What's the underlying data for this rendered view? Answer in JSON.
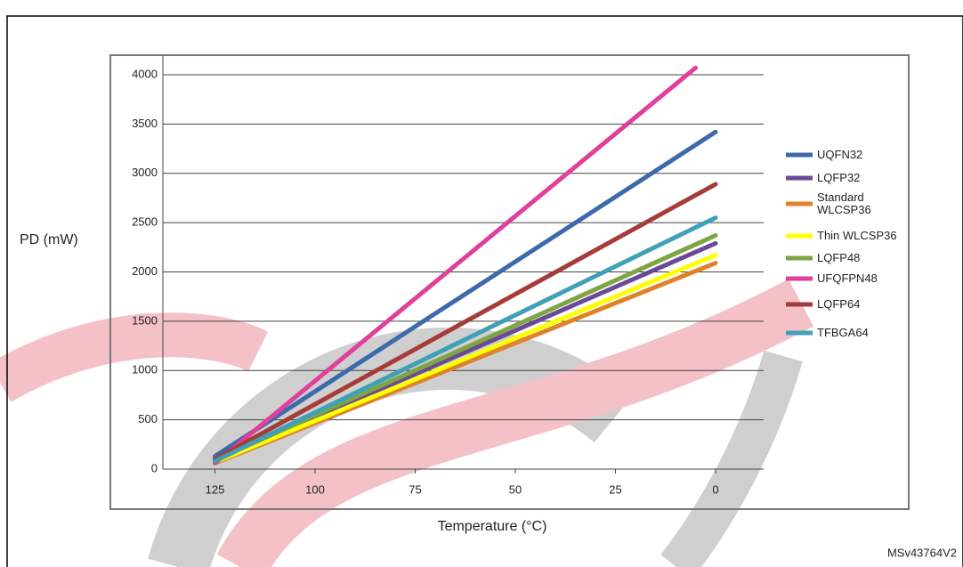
{
  "chart_data": {
    "type": "line",
    "y_label": "PD (mW)",
    "x_label": "Temperature (°C)",
    "ref": "MSv43764V2",
    "xlim": [
      138,
      -12
    ],
    "xticks": [
      125,
      100,
      75,
      50,
      25,
      0
    ],
    "ylim": [
      0,
      4000
    ],
    "yticks": [
      0,
      500,
      1000,
      1500,
      2000,
      2500,
      3000,
      3500,
      4000
    ],
    "grid": true,
    "series": [
      {
        "name": "UQFN32",
        "color": "#3d6aaa",
        "x": [
          125,
          0
        ],
        "values": [
          130,
          3420
        ]
      },
      {
        "name": "LQFP32",
        "color": "#6a4a96",
        "x": [
          125,
          0
        ],
        "values": [
          80,
          2290
        ]
      },
      {
        "name": "Standard WLCSP36",
        "color": "#e0822a",
        "x": [
          125,
          0
        ],
        "values": [
          60,
          2090
        ]
      },
      {
        "name": "Thin WLCSP36",
        "color": "#ffff00",
        "x": [
          125,
          0
        ],
        "values": [
          70,
          2170
        ]
      },
      {
        "name": "LQFP48",
        "color": "#7ea444",
        "x": [
          125,
          0
        ],
        "values": [
          90,
          2370
        ]
      },
      {
        "name": "UFQFPN48",
        "color": "#e0409a",
        "x": [
          125,
          5
        ],
        "values": [
          60,
          4070
        ]
      },
      {
        "name": "LQFP64",
        "color": "#a53c38",
        "x": [
          125,
          0
        ],
        "values": [
          100,
          2890
        ]
      },
      {
        "name": "TFBGA64",
        "color": "#3fa0b8",
        "x": [
          125,
          0
        ],
        "values": [
          80,
          2550
        ]
      }
    ]
  }
}
